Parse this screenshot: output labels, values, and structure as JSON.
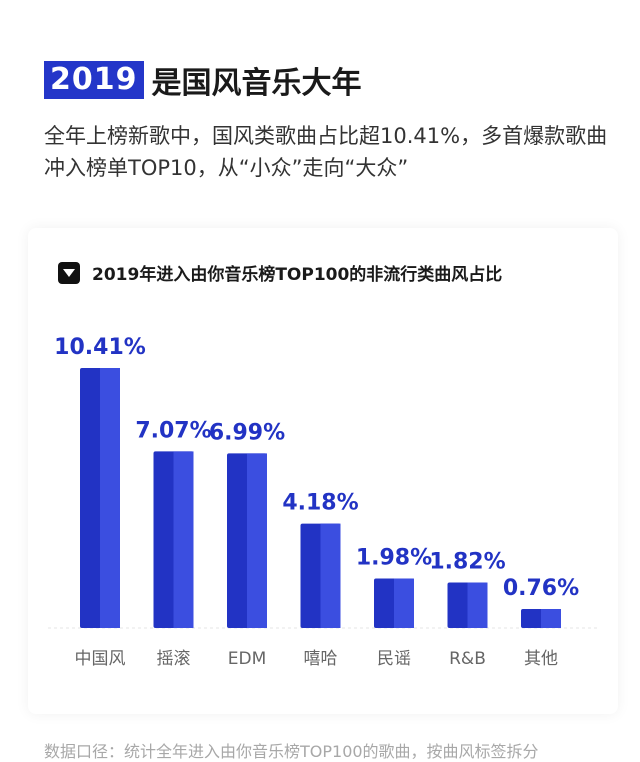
{
  "header": {
    "year": "2019",
    "title": "是国风音乐大年"
  },
  "intro": "全年上榜新歌中，国风类歌曲占比超10.41%，多首爆款歌曲冲入榜单TOP10，从“小众”走向“大众”",
  "icons": {
    "chart_title_marker": "dropdown-triangle-icon"
  },
  "colors": {
    "accent": "#2436c9",
    "bar_dark": "#2233c4",
    "bar_light": "#3b4ee0"
  },
  "chart_data": {
    "type": "bar",
    "title": "2019年进入由你音乐榜TOP100的非流行类曲风占比",
    "categories": [
      "中国风",
      "摇滚",
      "EDM",
      "嘻哈",
      "民谣",
      "R&B",
      "其他"
    ],
    "values": [
      10.41,
      7.07,
      6.99,
      4.18,
      1.98,
      1.82,
      0.76
    ],
    "value_labels": [
      "10.41%",
      "7.07%",
      "6.99%",
      "4.18%",
      "1.98%",
      "1.82%",
      "0.76%"
    ],
    "unit": "%",
    "grid": false,
    "legend": "none"
  },
  "footer": "数据口径：统计全年进入由你音乐榜TOP100的歌曲，按曲风标签拆分"
}
